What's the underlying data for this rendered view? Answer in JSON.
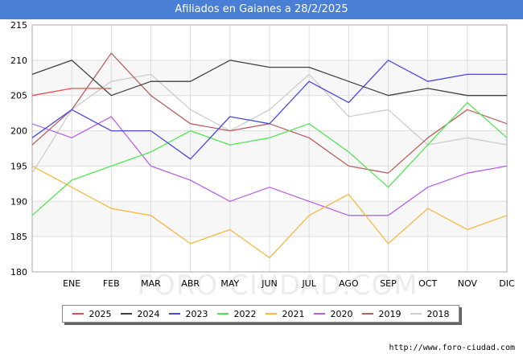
{
  "header": {
    "title": "Afiliados en Gaianes a 28/2/2025"
  },
  "footer": {
    "source": "http://www.foro-ciudad.com"
  },
  "watermark": "FORO-CIUDAD.COM",
  "chart_data": {
    "type": "line",
    "title": "Afiliados en Gaianes a 28/2/2025",
    "xlabel": "",
    "ylabel": "",
    "categories": [
      "",
      "ENE",
      "FEB",
      "MAR",
      "ABR",
      "MAY",
      "JUN",
      "JUL",
      "AGO",
      "SEP",
      "OCT",
      "NOV",
      "DIC"
    ],
    "ylim": [
      180,
      215
    ],
    "yticks": [
      180,
      185,
      190,
      195,
      200,
      205,
      210,
      215
    ],
    "grid": true,
    "legend_position": "bottom",
    "series": [
      {
        "name": "2025",
        "color": "#e8504f",
        "values": [
          205,
          206,
          206,
          null,
          null,
          null,
          null,
          null,
          null,
          null,
          null,
          null,
          null
        ]
      },
      {
        "name": "2024",
        "color": "#404040",
        "values": [
          208,
          210,
          205,
          207,
          207,
          210,
          209,
          209,
          207,
          205,
          206,
          205,
          205
        ]
      },
      {
        "name": "2023",
        "color": "#4a4ae0",
        "values": [
          199,
          203,
          200,
          200,
          196,
          202,
          201,
          207,
          204,
          210,
          207,
          208,
          208
        ]
      },
      {
        "name": "2022",
        "color": "#50e850",
        "values": [
          188,
          193,
          195,
          197,
          200,
          198,
          199,
          201,
          197,
          192,
          198,
          204,
          199
        ]
      },
      {
        "name": "2021",
        "color": "#f8b840",
        "values": [
          195,
          192,
          189,
          188,
          184,
          186,
          182,
          188,
          191,
          184,
          189,
          186,
          188
        ]
      },
      {
        "name": "2020",
        "color": "#b860e8",
        "values": [
          201,
          199,
          202,
          195,
          193,
          190,
          192,
          190,
          188,
          188,
          192,
          194,
          195
        ]
      },
      {
        "name": "2019",
        "color": "#b86060",
        "values": [
          198,
          203,
          211,
          205,
          201,
          200,
          201,
          199,
          195,
          194,
          199,
          203,
          201
        ]
      },
      {
        "name": "2018",
        "color": "#cccccc",
        "values": [
          194,
          203,
          207,
          208,
          203,
          200,
          203,
          208,
          202,
          203,
          198,
          199,
          198
        ]
      }
    ]
  }
}
